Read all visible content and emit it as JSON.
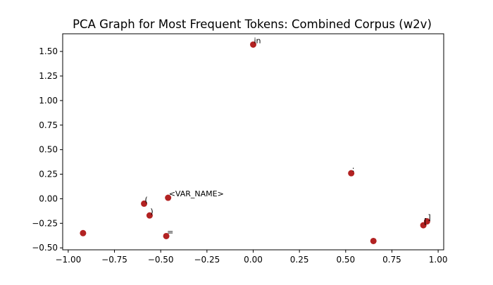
{
  "chart_data": {
    "type": "scatter",
    "title": "PCA Graph for Most Frequent Tokens: Combined Corpus (w2v)",
    "xlabel": "",
    "ylabel": "",
    "xlim": [
      -1.03,
      1.03
    ],
    "ylim": [
      -0.52,
      1.68
    ],
    "xticks": [
      -1.0,
      -0.75,
      -0.5,
      -0.25,
      0.0,
      0.25,
      0.5,
      0.75,
      1.0
    ],
    "xtick_labels": [
      "−1.00",
      "−0.75",
      "−0.50",
      "−0.25",
      "0.00",
      "0.25",
      "0.50",
      "0.75",
      "1.00"
    ],
    "yticks": [
      -0.5,
      -0.25,
      0.0,
      0.25,
      0.5,
      0.75,
      1.0,
      1.25,
      1.5
    ],
    "ytick_labels": [
      "−0.50",
      "−0.25",
      "0.00",
      "0.25",
      "0.50",
      "0.75",
      "1.00",
      "1.25",
      "1.50"
    ],
    "grid": false,
    "marker_color": "#b22222",
    "points": [
      {
        "x": 0.0,
        "y": 1.57,
        "label": "in"
      },
      {
        "x": 0.53,
        "y": 0.26,
        "label": ":"
      },
      {
        "x": -0.46,
        "y": 0.01,
        "label": "<VAR_NAME>"
      },
      {
        "x": -0.59,
        "y": -0.05,
        "label": "("
      },
      {
        "x": -0.56,
        "y": -0.17,
        "label": ")"
      },
      {
        "x": -0.47,
        "y": -0.38,
        "label": "="
      },
      {
        "x": -0.92,
        "y": -0.35,
        "label": ""
      },
      {
        "x": 0.65,
        "y": -0.43,
        "label": ""
      },
      {
        "x": 0.92,
        "y": -0.27,
        "label": "["
      },
      {
        "x": 0.94,
        "y": -0.23,
        "label": "]"
      }
    ]
  }
}
